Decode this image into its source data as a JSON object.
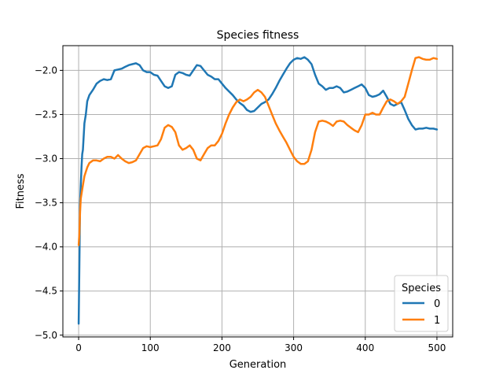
{
  "chart_data": {
    "type": "line",
    "title": "Species fitness",
    "xlabel": "Generation",
    "ylabel": "Fitness",
    "xlim": [
      -22,
      522
    ],
    "ylim": [
      -5.02,
      -1.72
    ],
    "xticks": [
      0,
      100,
      200,
      300,
      400,
      500
    ],
    "xtick_labels": [
      "0",
      "100",
      "200",
      "300",
      "400",
      "500"
    ],
    "yticks": [
      -5.0,
      -4.5,
      -4.0,
      -3.5,
      -3.0,
      -2.5,
      -2.0
    ],
    "ytick_labels": [
      "−5.0",
      "−4.5",
      "−4.0",
      "−3.5",
      "−3.0",
      "−2.5",
      "−2.0"
    ],
    "grid": true,
    "legend": {
      "title": "Species",
      "position": "lower right"
    },
    "series": [
      {
        "name": "0",
        "color": "#1f77b4",
        "x": [
          0,
          1,
          2,
          3,
          4,
          5,
          6,
          8,
          10,
          12,
          15,
          20,
          25,
          30,
          35,
          40,
          45,
          50,
          55,
          60,
          65,
          70,
          75,
          80,
          85,
          90,
          95,
          100,
          105,
          110,
          115,
          120,
          125,
          130,
          135,
          140,
          145,
          150,
          155,
          160,
          165,
          170,
          175,
          180,
          185,
          190,
          195,
          200,
          205,
          210,
          215,
          220,
          225,
          230,
          235,
          240,
          245,
          250,
          255,
          260,
          265,
          270,
          275,
          280,
          285,
          290,
          295,
          300,
          305,
          310,
          315,
          320,
          325,
          330,
          335,
          340,
          345,
          350,
          355,
          360,
          365,
          370,
          375,
          380,
          385,
          390,
          395,
          400,
          405,
          410,
          415,
          420,
          425,
          430,
          435,
          440,
          445,
          450,
          455,
          460,
          465,
          470,
          475,
          480,
          485,
          490,
          495,
          500
        ],
        "values": [
          -4.87,
          -4.2,
          -3.5,
          -3.3,
          -3.1,
          -2.95,
          -2.9,
          -2.6,
          -2.5,
          -2.35,
          -2.28,
          -2.22,
          -2.15,
          -2.12,
          -2.1,
          -2.11,
          -2.1,
          -2.0,
          -1.99,
          -1.98,
          -1.96,
          -1.94,
          -1.93,
          -1.92,
          -1.94,
          -2.0,
          -2.02,
          -2.02,
          -2.05,
          -2.06,
          -2.12,
          -2.18,
          -2.2,
          -2.18,
          -2.05,
          -2.02,
          -2.03,
          -2.05,
          -2.06,
          -2.0,
          -1.94,
          -1.95,
          -2.0,
          -2.05,
          -2.07,
          -2.1,
          -2.1,
          -2.15,
          -2.2,
          -2.24,
          -2.28,
          -2.33,
          -2.37,
          -2.4,
          -2.45,
          -2.47,
          -2.46,
          -2.42,
          -2.38,
          -2.36,
          -2.33,
          -2.27,
          -2.2,
          -2.12,
          -2.05,
          -1.98,
          -1.92,
          -1.88,
          -1.86,
          -1.87,
          -1.85,
          -1.88,
          -1.93,
          -2.05,
          -2.15,
          -2.18,
          -2.22,
          -2.2,
          -2.2,
          -2.18,
          -2.2,
          -2.25,
          -2.24,
          -2.22,
          -2.2,
          -2.18,
          -2.16,
          -2.2,
          -2.28,
          -2.3,
          -2.29,
          -2.27,
          -2.23,
          -2.3,
          -2.38,
          -2.4,
          -2.38,
          -2.36,
          -2.45,
          -2.55,
          -2.62,
          -2.67,
          -2.66,
          -2.66,
          -2.65,
          -2.66,
          -2.66,
          -2.67
        ]
      },
      {
        "name": "1",
        "color": "#ff7f0e",
        "x": [
          0,
          1,
          2,
          3,
          4,
          5,
          6,
          8,
          10,
          12,
          15,
          20,
          25,
          30,
          35,
          40,
          45,
          50,
          55,
          60,
          65,
          70,
          75,
          80,
          85,
          90,
          95,
          100,
          105,
          110,
          115,
          120,
          125,
          130,
          135,
          140,
          145,
          150,
          155,
          160,
          165,
          170,
          175,
          180,
          185,
          190,
          195,
          200,
          205,
          210,
          215,
          220,
          225,
          230,
          235,
          240,
          245,
          250,
          255,
          260,
          265,
          270,
          275,
          280,
          285,
          290,
          295,
          300,
          305,
          310,
          315,
          320,
          325,
          330,
          335,
          340,
          345,
          350,
          355,
          360,
          365,
          370,
          375,
          380,
          385,
          390,
          395,
          400,
          405,
          410,
          415,
          420,
          425,
          430,
          435,
          440,
          445,
          450,
          455,
          460,
          465,
          470,
          475,
          480,
          485,
          490,
          495,
          500
        ],
        "values": [
          -3.98,
          -3.85,
          -3.6,
          -3.45,
          -3.4,
          -3.35,
          -3.3,
          -3.2,
          -3.15,
          -3.1,
          -3.05,
          -3.02,
          -3.02,
          -3.03,
          -3.0,
          -2.98,
          -2.98,
          -3.0,
          -2.96,
          -3.0,
          -3.03,
          -3.05,
          -3.04,
          -3.02,
          -2.95,
          -2.88,
          -2.86,
          -2.87,
          -2.86,
          -2.85,
          -2.78,
          -2.65,
          -2.62,
          -2.64,
          -2.7,
          -2.85,
          -2.9,
          -2.88,
          -2.85,
          -2.9,
          -3.0,
          -3.02,
          -2.95,
          -2.88,
          -2.85,
          -2.85,
          -2.8,
          -2.72,
          -2.6,
          -2.5,
          -2.42,
          -2.36,
          -2.33,
          -2.35,
          -2.33,
          -2.3,
          -2.25,
          -2.22,
          -2.25,
          -2.3,
          -2.4,
          -2.5,
          -2.6,
          -2.68,
          -2.75,
          -2.82,
          -2.9,
          -2.98,
          -3.03,
          -3.06,
          -3.06,
          -3.03,
          -2.9,
          -2.7,
          -2.58,
          -2.57,
          -2.58,
          -2.6,
          -2.63,
          -2.58,
          -2.57,
          -2.58,
          -2.62,
          -2.65,
          -2.68,
          -2.7,
          -2.62,
          -2.5,
          -2.5,
          -2.48,
          -2.5,
          -2.5,
          -2.42,
          -2.35,
          -2.33,
          -2.35,
          -2.38,
          -2.35,
          -2.3,
          -2.15,
          -2.0,
          -1.86,
          -1.85,
          -1.87,
          -1.88,
          -1.88,
          -1.86,
          -1.87
        ]
      }
    ]
  }
}
